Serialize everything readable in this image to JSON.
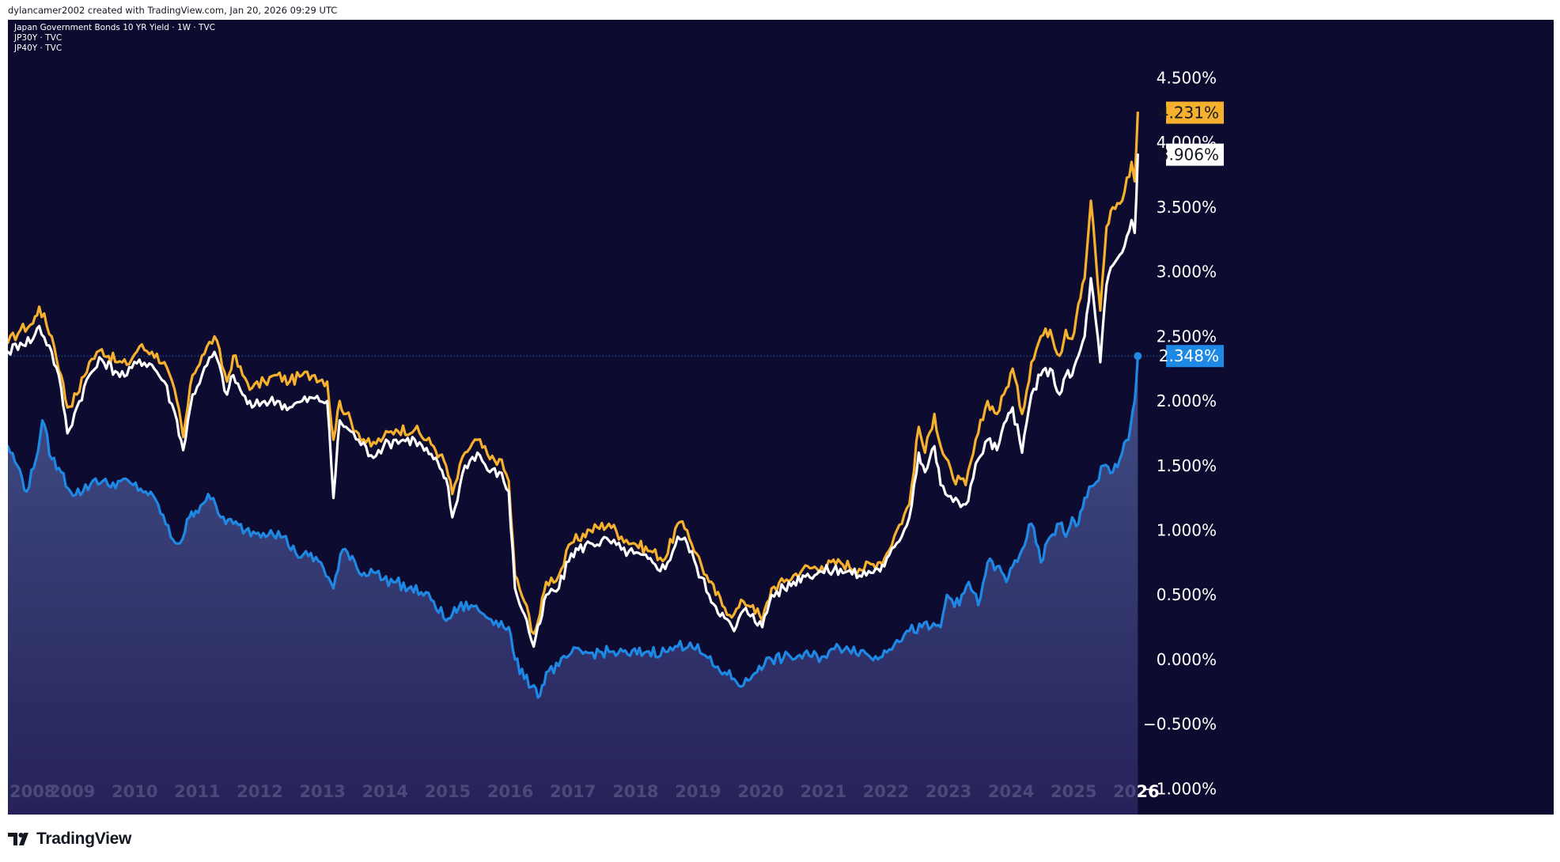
{
  "attribution": "dylancamer2002 created with TradingView.com, Jan 20, 2026 09:29 UTC",
  "legend": [
    "Japan Government Bonds 10 YR Yield · 1W · TVC",
    "JP30Y · TVC",
    "JP40Y · TVC"
  ],
  "brand": "TradingView",
  "colors": {
    "background": "#0e0b30",
    "jp10y": "#1e88e5",
    "jp30y": "#ffffff",
    "jp40y": "#f5b02e",
    "jp10y_fill_top": "#4a5a95",
    "jp10y_fill_bottom": "#2a2660"
  },
  "chart_data": {
    "type": "line",
    "title": "Japan Government Bonds 10 YR Yield · 1W · TVC",
    "xlabel": "",
    "ylabel": "",
    "xlim": [
      2008.0,
      2026.45
    ],
    "ylim": [
      -1.2,
      4.95
    ],
    "x_ticks": [
      "2008",
      "2009",
      "2010",
      "2011",
      "2012",
      "2013",
      "2014",
      "2015",
      "2016",
      "2017",
      "2018",
      "2019",
      "2020",
      "2021",
      "2022",
      "2023",
      "2024",
      "2025",
      "2026"
    ],
    "y_ticks": [
      "4.500%",
      "4.000%",
      "3.500%",
      "3.000%",
      "2.500%",
      "2.000%",
      "1.500%",
      "1.000%",
      "0.500%",
      "0.000%",
      "−0.500%",
      "−1.000%"
    ],
    "y_tick_values": [
      4.5,
      4.0,
      3.5,
      3.0,
      2.5,
      2.0,
      1.5,
      1.0,
      0.5,
      0.0,
      -0.5,
      -1.0
    ],
    "reference_line": 2.348,
    "series": [
      {
        "name": "JP40Y · TVC",
        "color": "#f5b02e",
        "last_label": "4.231%",
        "x": [
          2008.0,
          2008.2,
          2008.4,
          2008.5,
          2008.7,
          2008.85,
          2008.95,
          2009.1,
          2009.3,
          2009.5,
          2009.75,
          2009.9,
          2010.1,
          2010.3,
          2010.5,
          2010.7,
          2010.8,
          2010.95,
          2011.1,
          2011.3,
          2011.5,
          2011.6,
          2011.75,
          2011.9,
          2012.1,
          2012.3,
          2012.5,
          2012.7,
          2012.9,
          2013.1,
          2013.2,
          2013.3,
          2013.4,
          2013.6,
          2013.8,
          2014.0,
          2014.2,
          2014.5,
          2014.8,
          2014.9,
          2015.0,
          2015.1,
          2015.3,
          2015.5,
          2015.7,
          2015.85,
          2016.0,
          2016.1,
          2016.25,
          2016.4,
          2016.5,
          2016.6,
          2016.8,
          2017.0,
          2017.3,
          2017.6,
          2017.8,
          2018.0,
          2018.3,
          2018.5,
          2018.7,
          2018.85,
          2019.0,
          2019.2,
          2019.45,
          2019.6,
          2019.75,
          2019.9,
          2020.05,
          2020.2,
          2020.4,
          2020.7,
          2021.0,
          2021.3,
          2021.6,
          2021.9,
          2022.0,
          2022.2,
          2022.4,
          2022.55,
          2022.65,
          2022.8,
          2022.9,
          2023.1,
          2023.3,
          2023.5,
          2023.65,
          2023.8,
          2023.95,
          2024.05,
          2024.2,
          2024.35,
          2024.5,
          2024.65,
          2024.8,
          2024.9,
          2025.0,
          2025.1,
          2025.2,
          2025.3,
          2025.45,
          2025.55,
          2025.65,
          2025.8,
          2025.95,
          2026.0,
          2026.05
        ],
        "y": [
          2.45,
          2.55,
          2.6,
          2.73,
          2.5,
          2.2,
          1.95,
          2.05,
          2.3,
          2.4,
          2.3,
          2.28,
          2.42,
          2.38,
          2.3,
          2.0,
          1.72,
          2.2,
          2.35,
          2.5,
          2.15,
          2.35,
          2.2,
          2.1,
          2.15,
          2.2,
          2.15,
          2.2,
          2.2,
          2.15,
          1.7,
          2.0,
          1.9,
          1.75,
          1.65,
          1.72,
          1.78,
          1.78,
          1.65,
          1.58,
          1.5,
          1.28,
          1.6,
          1.7,
          1.55,
          1.55,
          1.38,
          0.65,
          0.45,
          0.2,
          0.35,
          0.6,
          0.65,
          0.9,
          1.0,
          1.05,
          0.95,
          0.9,
          0.83,
          0.78,
          1.05,
          1.0,
          0.82,
          0.6,
          0.4,
          0.35,
          0.45,
          0.42,
          0.3,
          0.55,
          0.6,
          0.7,
          0.72,
          0.75,
          0.7,
          0.75,
          0.78,
          1.0,
          1.2,
          1.8,
          1.6,
          1.9,
          1.65,
          1.4,
          1.35,
          1.75,
          2.0,
          1.9,
          2.1,
          2.25,
          1.9,
          2.3,
          2.5,
          2.55,
          2.35,
          2.55,
          2.48,
          2.75,
          2.95,
          3.55,
          2.7,
          3.35,
          3.5,
          3.55,
          3.85,
          3.7,
          4.231
        ]
      },
      {
        "name": "JP30Y · TVC",
        "color": "#ffffff",
        "last_label": "3.906%",
        "x": [
          2008.0,
          2008.2,
          2008.4,
          2008.5,
          2008.7,
          2008.85,
          2008.95,
          2009.1,
          2009.3,
          2009.5,
          2009.75,
          2009.9,
          2010.1,
          2010.3,
          2010.5,
          2010.7,
          2010.8,
          2010.95,
          2011.1,
          2011.3,
          2011.5,
          2011.6,
          2011.75,
          2011.9,
          2012.1,
          2012.3,
          2012.5,
          2012.7,
          2012.9,
          2013.1,
          2013.2,
          2013.3,
          2013.4,
          2013.6,
          2013.8,
          2014.0,
          2014.2,
          2014.5,
          2014.8,
          2014.9,
          2015.0,
          2015.1,
          2015.3,
          2015.5,
          2015.7,
          2015.85,
          2016.0,
          2016.1,
          2016.25,
          2016.4,
          2016.5,
          2016.6,
          2016.8,
          2017.0,
          2017.3,
          2017.6,
          2017.8,
          2018.0,
          2018.3,
          2018.5,
          2018.7,
          2018.85,
          2019.0,
          2019.2,
          2019.45,
          2019.6,
          2019.75,
          2019.9,
          2020.05,
          2020.2,
          2020.4,
          2020.7,
          2021.0,
          2021.3,
          2021.6,
          2021.9,
          2022.0,
          2022.2,
          2022.4,
          2022.55,
          2022.65,
          2022.8,
          2022.9,
          2023.1,
          2023.3,
          2023.5,
          2023.65,
          2023.8,
          2023.95,
          2024.05,
          2024.2,
          2024.35,
          2024.5,
          2024.65,
          2024.8,
          2024.9,
          2025.0,
          2025.1,
          2025.2,
          2025.3,
          2025.45,
          2025.55,
          2025.65,
          2025.8,
          2025.95,
          2026.0,
          2026.05
        ],
        "y": [
          2.38,
          2.45,
          2.48,
          2.58,
          2.38,
          2.1,
          1.75,
          1.95,
          2.2,
          2.32,
          2.22,
          2.2,
          2.32,
          2.28,
          2.15,
          1.85,
          1.62,
          2.05,
          2.2,
          2.38,
          2.05,
          2.2,
          2.05,
          1.95,
          2.0,
          2.0,
          1.95,
          2.0,
          2.02,
          2.0,
          1.25,
          1.85,
          1.8,
          1.7,
          1.58,
          1.65,
          1.7,
          1.7,
          1.55,
          1.48,
          1.4,
          1.1,
          1.5,
          1.6,
          1.45,
          1.45,
          1.3,
          0.55,
          0.35,
          0.1,
          0.28,
          0.5,
          0.55,
          0.82,
          0.9,
          0.92,
          0.85,
          0.82,
          0.75,
          0.7,
          0.95,
          0.9,
          0.72,
          0.5,
          0.32,
          0.22,
          0.38,
          0.35,
          0.25,
          0.5,
          0.55,
          0.65,
          0.68,
          0.7,
          0.65,
          0.7,
          0.72,
          0.9,
          1.1,
          1.6,
          1.45,
          1.65,
          1.35,
          1.22,
          1.2,
          1.55,
          1.7,
          1.62,
          1.85,
          1.95,
          1.6,
          2.05,
          2.2,
          2.25,
          2.05,
          2.2,
          2.2,
          2.35,
          2.5,
          2.95,
          2.3,
          2.9,
          3.05,
          3.15,
          3.4,
          3.3,
          3.906
        ]
      },
      {
        "name": "Japan Government Bonds 10 YR Yield · 1W · TVC",
        "color": "#1e88e5",
        "last_label": "2.348%",
        "x": [
          2008.0,
          2008.15,
          2008.3,
          2008.45,
          2008.55,
          2008.7,
          2008.85,
          2009.0,
          2009.2,
          2009.4,
          2009.6,
          2009.8,
          2010.0,
          2010.2,
          2010.4,
          2010.6,
          2010.75,
          2010.9,
          2011.0,
          2011.2,
          2011.4,
          2011.6,
          2011.8,
          2012.0,
          2012.2,
          2012.4,
          2012.6,
          2012.8,
          2013.0,
          2013.2,
          2013.35,
          2013.5,
          2013.65,
          2013.8,
          2014.0,
          2014.2,
          2014.4,
          2014.6,
          2014.8,
          2015.0,
          2015.1,
          2015.2,
          2015.4,
          2015.6,
          2015.8,
          2016.0,
          2016.1,
          2016.25,
          2016.4,
          2016.5,
          2016.6,
          2016.8,
          2017.0,
          2017.3,
          2017.6,
          2017.9,
          2018.2,
          2018.5,
          2018.7,
          2018.9,
          2019.1,
          2019.3,
          2019.45,
          2019.6,
          2019.75,
          2019.9,
          2020.0,
          2020.2,
          2020.5,
          2020.8,
          2021.0,
          2021.2,
          2021.4,
          2021.7,
          2021.9,
          2022.0,
          2022.2,
          2022.4,
          2022.6,
          2022.75,
          2022.9,
          2023.0,
          2023.2,
          2023.35,
          2023.5,
          2023.65,
          2023.8,
          2023.95,
          2024.05,
          2024.2,
          2024.35,
          2024.5,
          2024.65,
          2024.8,
          2024.9,
          2025.0,
          2025.1,
          2025.2,
          2025.35,
          2025.5,
          2025.65,
          2025.8,
          2025.9,
          2026.0,
          2026.05
        ],
        "y": [
          1.65,
          1.5,
          1.3,
          1.55,
          1.85,
          1.55,
          1.45,
          1.3,
          1.3,
          1.4,
          1.35,
          1.38,
          1.35,
          1.3,
          1.2,
          0.95,
          0.9,
          1.1,
          1.15,
          1.28,
          1.1,
          1.05,
          1.0,
          0.98,
          1.0,
          0.95,
          0.82,
          0.8,
          0.75,
          0.55,
          0.85,
          0.8,
          0.65,
          0.7,
          0.62,
          0.6,
          0.55,
          0.52,
          0.45,
          0.3,
          0.35,
          0.4,
          0.42,
          0.35,
          0.3,
          0.25,
          0.0,
          -0.15,
          -0.2,
          -0.28,
          -0.1,
          -0.05,
          0.05,
          0.05,
          0.06,
          0.04,
          0.06,
          0.06,
          0.1,
          0.13,
          0.04,
          -0.06,
          -0.1,
          -0.15,
          -0.2,
          -0.12,
          -0.05,
          0.0,
          0.02,
          0.03,
          0.02,
          0.08,
          0.1,
          0.05,
          0.0,
          0.07,
          0.15,
          0.22,
          0.25,
          0.25,
          0.25,
          0.5,
          0.42,
          0.6,
          0.42,
          0.75,
          0.72,
          0.6,
          0.72,
          0.85,
          1.05,
          0.75,
          0.95,
          1.05,
          0.95,
          1.1,
          1.05,
          1.25,
          1.35,
          1.5,
          1.45,
          1.6,
          1.7,
          2.0,
          2.348
        ]
      }
    ]
  }
}
